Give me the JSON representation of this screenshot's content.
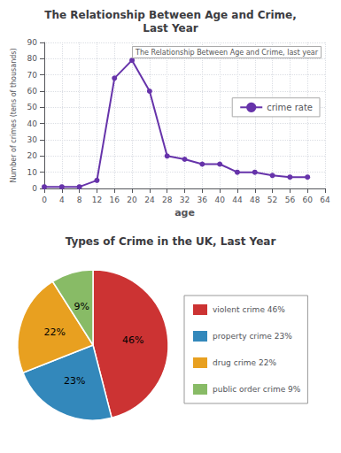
{
  "chart_data": [
    {
      "type": "line",
      "title": "The Relationship Between Age and Crime,\nLast Year",
      "subtitle": "The Relationship Between Age and Crime, last year",
      "xlabel": "age",
      "ylabel": "Number of crimes (tens of thousands)",
      "x": [
        0,
        4,
        8,
        12,
        16,
        20,
        24,
        28,
        32,
        36,
        40,
        44,
        48,
        52,
        56,
        60
      ],
      "series": [
        {
          "name": "crime rate",
          "color": "#6633aa",
          "marker": "circle",
          "values": [
            1,
            1,
            1,
            5,
            68,
            79,
            60,
            20,
            18,
            15,
            15,
            10,
            10,
            8,
            7,
            7
          ]
        }
      ],
      "xlim": [
        0,
        64
      ],
      "xticks": [
        0,
        4,
        8,
        12,
        16,
        20,
        24,
        28,
        32,
        36,
        40,
        44,
        48,
        52,
        56,
        60,
        64
      ],
      "ylim": [
        0,
        90
      ],
      "yticks": [
        0,
        10,
        20,
        30,
        40,
        50,
        60,
        70,
        80,
        90
      ],
      "grid": true,
      "legend": "right"
    },
    {
      "type": "pie",
      "title": "Types of Crime in the UK, Last Year",
      "categories": [
        "violent crime 46%",
        "property crime 23%",
        "drug crime 22%",
        "public order crime 9%"
      ],
      "values": [
        46,
        23,
        22,
        9
      ],
      "value_labels": [
        "46%",
        "23%",
        "22%",
        "9%"
      ],
      "colors": [
        "#cc3333",
        "#3388bb",
        "#e8a020",
        "#88bb66"
      ],
      "data_labels": true,
      "legend": "right"
    }
  ]
}
